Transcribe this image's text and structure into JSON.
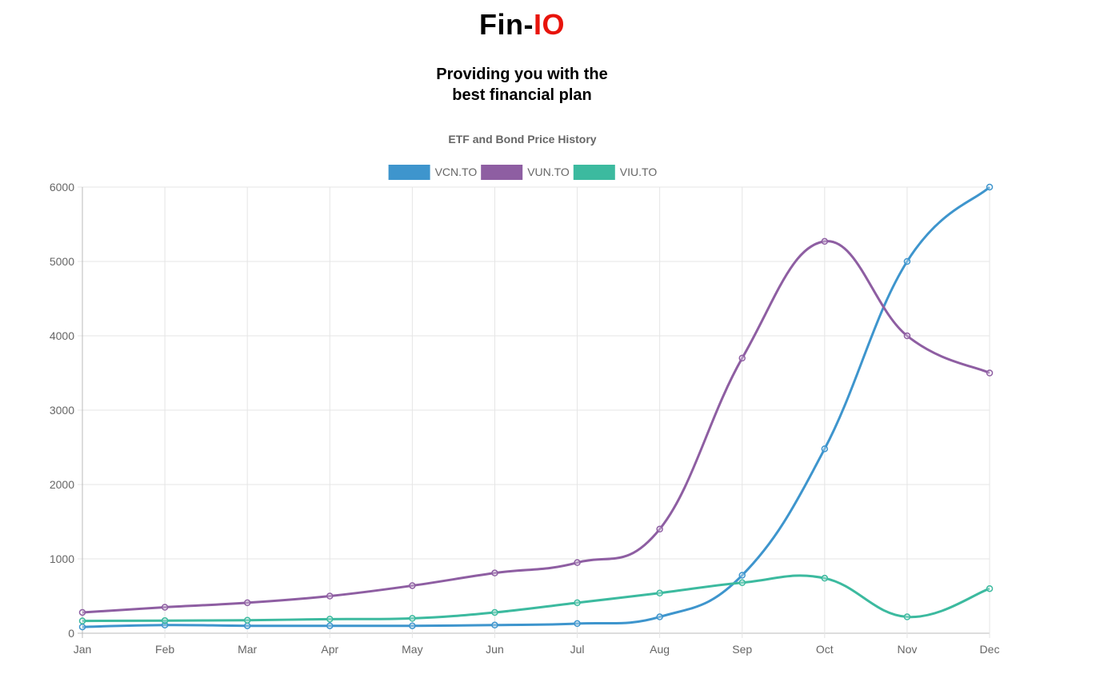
{
  "header": {
    "title_main": "Fin-",
    "title_accent": "IO",
    "title_accent_color": "#e8140c",
    "tagline_line1": "Providing you with the",
    "tagline_line2": "best financial plan"
  },
  "chart_data": {
    "type": "line",
    "title": "ETF and Bond Price History",
    "xlabel": "",
    "ylabel": "",
    "categories": [
      "Jan",
      "Feb",
      "Mar",
      "Apr",
      "May",
      "Jun",
      "Jul",
      "Aug",
      "Sep",
      "Oct",
      "Nov",
      "Dec"
    ],
    "ylim": [
      0,
      6000
    ],
    "yticks": [
      0,
      1000,
      2000,
      3000,
      4000,
      5000,
      6000
    ],
    "grid": true,
    "legend": "top-center",
    "series": [
      {
        "name": "VCN.TO",
        "color": "#3e95cd",
        "values": [
          85,
          110,
          100,
          100,
          100,
          110,
          130,
          220,
          780,
          2480,
          5000,
          6000
        ]
      },
      {
        "name": "VUN.TO",
        "color": "#8e5ea2",
        "values": [
          280,
          350,
          410,
          500,
          640,
          810,
          950,
          1400,
          3700,
          5270,
          4000,
          3500
        ]
      },
      {
        "name": "VIU.TO",
        "color": "#3cba9f",
        "values": [
          165,
          170,
          175,
          190,
          200,
          280,
          410,
          540,
          680,
          740,
          220,
          600
        ]
      }
    ]
  }
}
